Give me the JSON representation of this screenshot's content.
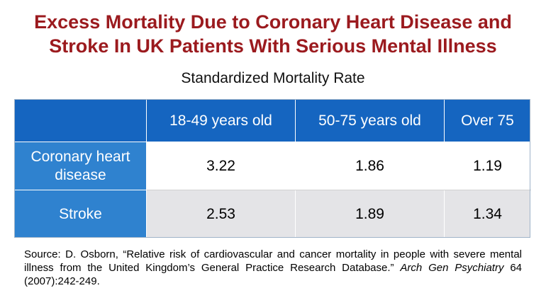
{
  "title": {
    "line1": "Excess Mortality Due to Coronary Heart Disease and",
    "line2": "Stroke In UK Patients With Serious Mental Illness"
  },
  "subtitle": "Standardized Mortality Rate",
  "table": {
    "corner": "",
    "columns": [
      "18-49 years old",
      "50-75 years old",
      "Over 75"
    ],
    "rows": [
      {
        "label": "Coronary heart disease",
        "values": [
          "3.22",
          "1.86",
          "1.19"
        ]
      },
      {
        "label": "Stroke",
        "values": [
          "2.53",
          "1.89",
          "1.34"
        ]
      }
    ]
  },
  "source": {
    "prefix": "Source: D. Osborn, “Relative risk of cardiovascular and cancer mortality in people with severe mental illness from the United Kingdom’s General Practice Research Database.” ",
    "journal": "Arch Gen Psychiatry",
    "suffix": " 64 (2007):242-249."
  },
  "colors": {
    "title": "#9b1a1e",
    "header_bg": "#1565c0",
    "row_label_bg": "#2f82cf",
    "row_alt_bg": "#e4e4e7"
  }
}
